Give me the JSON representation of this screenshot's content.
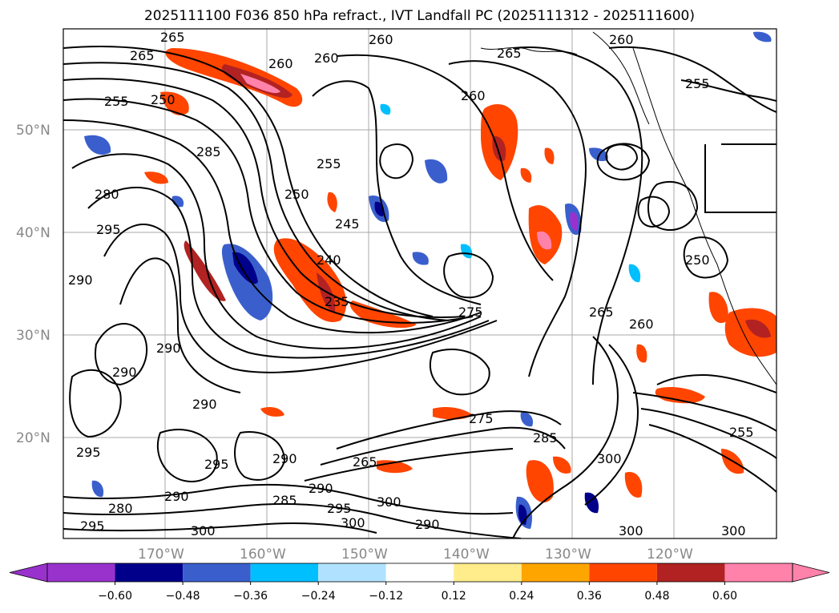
{
  "title": "2025111100 F036 850 hPa refract., IVT Landfall PC (2025111312 - 2025111600)",
  "lat_labels": [
    "50°N",
    "40°N",
    "30°N",
    "20°N"
  ],
  "lon_labels": [
    "170°W",
    "160°W",
    "150°W",
    "140°W",
    "130°W",
    "120°W"
  ],
  "contour_labels": [
    {
      "id": "c1",
      "text": "265"
    },
    {
      "id": "c2",
      "text": "265"
    },
    {
      "id": "c3",
      "text": "255"
    },
    {
      "id": "c4",
      "text": "250"
    },
    {
      "id": "c5",
      "text": "260"
    },
    {
      "id": "c6",
      "text": "260"
    },
    {
      "id": "c7",
      "text": "260"
    },
    {
      "id": "c8",
      "text": "265"
    },
    {
      "id": "c9",
      "text": "260"
    },
    {
      "id": "c10",
      "text": "260"
    },
    {
      "id": "c11",
      "text": "255"
    },
    {
      "id": "c12",
      "text": "285"
    },
    {
      "id": "c13",
      "text": "280"
    },
    {
      "id": "c14",
      "text": "295"
    },
    {
      "id": "c15",
      "text": "290"
    },
    {
      "id": "c16",
      "text": "255"
    },
    {
      "id": "c17",
      "text": "250"
    },
    {
      "id": "c18",
      "text": "245"
    },
    {
      "id": "c19",
      "text": "240"
    },
    {
      "id": "c20",
      "text": "235"
    },
    {
      "id": "c21",
      "text": "275"
    },
    {
      "id": "c22",
      "text": "265"
    },
    {
      "id": "c23",
      "text": "260"
    },
    {
      "id": "c24",
      "text": "250"
    },
    {
      "id": "c25",
      "text": "290"
    },
    {
      "id": "c26",
      "text": "290"
    },
    {
      "id": "c27",
      "text": "295"
    },
    {
      "id": "c28",
      "text": "290"
    },
    {
      "id": "c29",
      "text": "290"
    },
    {
      "id": "c30",
      "text": "285"
    },
    {
      "id": "c31",
      "text": "290"
    },
    {
      "id": "c32",
      "text": "295"
    },
    {
      "id": "c33",
      "text": "300"
    },
    {
      "id": "c34",
      "text": "300"
    },
    {
      "id": "c35",
      "text": "290"
    },
    {
      "id": "c36",
      "text": "295"
    },
    {
      "id": "c37",
      "text": "300"
    },
    {
      "id": "c38",
      "text": "280"
    },
    {
      "id": "c39",
      "text": "265"
    },
    {
      "id": "c40",
      "text": "275"
    },
    {
      "id": "c41",
      "text": "285"
    },
    {
      "id": "c42",
      "text": "300"
    },
    {
      "id": "c43",
      "text": "255"
    },
    {
      "id": "c44",
      "text": "300"
    },
    {
      "id": "c45",
      "text": "300"
    },
    {
      "id": "c46",
      "text": "290"
    },
    {
      "id": "c47",
      "text": "295"
    }
  ],
  "colorbar": {
    "colors": [
      "#9932cc",
      "#00008b",
      "#3a5fcd",
      "#00bfff",
      "#b0e2ff",
      "#ffffff",
      "#ffec8b",
      "#ffa500",
      "#ff4500",
      "#b22222",
      "#ff82ab",
      "#ff82ab"
    ],
    "tick_labels": [
      "−0.60",
      "−0.48",
      "−0.36",
      "−0.24",
      "−0.12",
      "0.12",
      "0.24",
      "0.36",
      "0.48",
      "0.60"
    ]
  }
}
